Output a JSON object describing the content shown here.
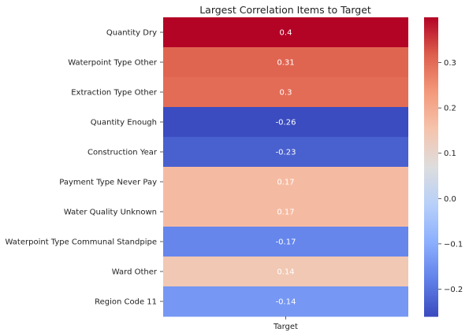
{
  "chart_data": {
    "type": "heatmap",
    "title": "Largest Correlation Items to Target",
    "columns": [
      "Target"
    ],
    "rows": [
      {
        "label": "Quantity Dry",
        "value": 0.4
      },
      {
        "label": "Waterpoint Type Other",
        "value": 0.31
      },
      {
        "label": "Extraction Type Other",
        "value": 0.3
      },
      {
        "label": "Quantity Enough",
        "value": -0.26
      },
      {
        "label": "Construction Year",
        "value": -0.23
      },
      {
        "label": "Payment Type Never Pay",
        "value": 0.17
      },
      {
        "label": "Water Quality Unknown",
        "value": 0.17
      },
      {
        "label": "Waterpoint Type Communal Standpipe",
        "value": -0.17
      },
      {
        "label": "Ward Other",
        "value": 0.14
      },
      {
        "label": "Region Code 11",
        "value": -0.14
      }
    ],
    "colormap": "coolwarm",
    "vmin": -0.26,
    "vmax": 0.4,
    "colorbar_ticks": [
      "−0.2",
      "−0.1",
      "0.0",
      "0.1",
      "0.2",
      "0.3"
    ],
    "colorbar_tick_values": [
      -0.2,
      -0.1,
      0.0,
      0.1,
      0.2,
      0.3
    ]
  }
}
